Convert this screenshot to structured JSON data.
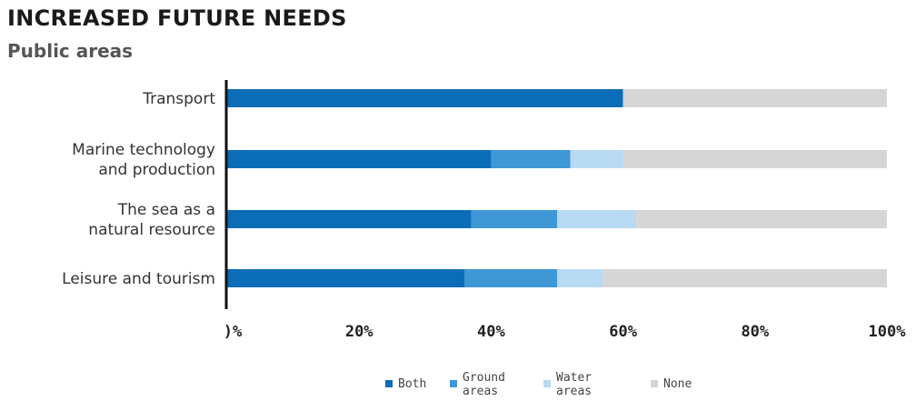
{
  "header": {
    "title": "INCREASED FUTURE NEEDS",
    "subtitle": "Public areas"
  },
  "chart_data": {
    "type": "bar",
    "orientation": "horizontal",
    "stacked": true,
    "title": "INCREASED FUTURE NEEDS",
    "subtitle": "Public areas",
    "categories": [
      [
        "Transport"
      ],
      [
        "Marine technology",
        "and production"
      ],
      [
        "The sea as a",
        "natural resource"
      ],
      [
        "Leisure and tourism"
      ]
    ],
    "series": [
      {
        "name": "Both",
        "legend_lines": [
          "Both"
        ],
        "color": "#0b6db7",
        "values": [
          60,
          40,
          37,
          36
        ]
      },
      {
        "name": "Ground areas",
        "legend_lines": [
          "Ground",
          "areas"
        ],
        "color": "#3f97d6",
        "values": [
          0,
          12,
          13,
          14
        ]
      },
      {
        "name": "Water areas",
        "legend_lines": [
          "Water",
          "areas"
        ],
        "color": "#b8d9f2",
        "values": [
          0,
          8,
          12,
          7
        ]
      },
      {
        "name": "None",
        "legend_lines": [
          "None"
        ],
        "color": "#d6d6d6",
        "values": [
          40,
          40,
          38,
          43
        ]
      }
    ],
    "xlim": [
      0,
      100
    ],
    "x_ticks": [
      0,
      20,
      40,
      60,
      80,
      100
    ],
    "x_tick_labels": [
      ")%",
      "20%",
      "40%",
      "60%",
      "80%",
      "100%"
    ],
    "grid": false,
    "legend_position": "bottom-center"
  }
}
